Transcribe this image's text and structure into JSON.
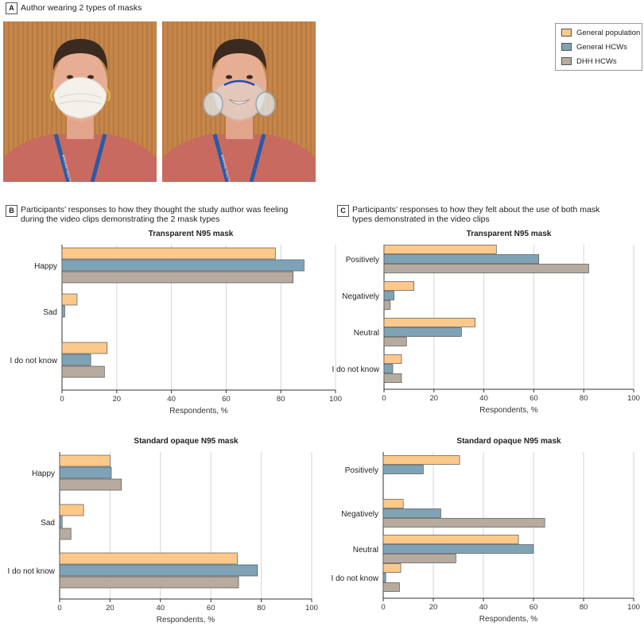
{
  "panel_a": {
    "letter": "A",
    "title": "Author wearing 2 types of masks"
  },
  "panel_b": {
    "letter": "B",
    "title_lines": [
      "Participants’ responses to how they thought the study author was feeling",
      "during the video clips demonstrating the 2 mask types"
    ]
  },
  "panel_c": {
    "letter": "C",
    "title_lines": [
      "Participants’ responses to how they felt about the use of both mask",
      "types demonstrated in the video clips"
    ]
  },
  "photo_left": {
    "lanyard_text": "BRIGHAM HEALTH"
  },
  "photo_right": {
    "lanyard_text": "BRIGHAM HEALTH"
  },
  "legend": [
    {
      "label": "General population",
      "color": "#fcc98b"
    },
    {
      "label": "General HCWs",
      "color": "#7fa3b6"
    },
    {
      "label": "DHH HCWs",
      "color": "#b6ab9e"
    }
  ],
  "chart_data": [
    {
      "id": "B-top",
      "type": "bar",
      "orientation": "horizontal",
      "title": "Transparent N95 mask",
      "xlabel": "Respondents, %",
      "xlim": [
        0,
        100
      ],
      "xticks": [
        "0",
        "20",
        "40",
        "60",
        "80",
        "100"
      ],
      "categories": [
        "Happy",
        "Sad",
        "I do not know"
      ],
      "series": [
        {
          "name": "General population",
          "values": [
            78,
            5.5,
            16.5
          ]
        },
        {
          "name": "General HCWs",
          "values": [
            88.5,
            1,
            10.5
          ]
        },
        {
          "name": "DHH HCWs",
          "values": [
            84.5,
            0,
            15.5
          ]
        }
      ]
    },
    {
      "id": "B-bottom",
      "type": "bar",
      "orientation": "horizontal",
      "title": "Standard opaque N95 mask",
      "xlabel": "Respondents, %",
      "xlim": [
        0,
        100
      ],
      "xticks": [
        "0",
        "20",
        "40",
        "60",
        "80",
        "100"
      ],
      "categories": [
        "Happy",
        "Sad",
        "I do not know"
      ],
      "series": [
        {
          "name": "General population",
          "values": [
            20,
            9.5,
            70.5
          ]
        },
        {
          "name": "General HCWs",
          "values": [
            20.5,
            1,
            78.5
          ]
        },
        {
          "name": "DHH HCWs",
          "values": [
            24.5,
            4.5,
            71
          ]
        }
      ]
    },
    {
      "id": "C-top",
      "type": "bar",
      "orientation": "horizontal",
      "title": "Transparent N95 mask",
      "xlabel": "Respondents, %",
      "xlim": [
        0,
        100
      ],
      "xticks": [
        "0",
        "20",
        "40",
        "60",
        "80",
        "100"
      ],
      "categories": [
        "Positively",
        "Negatively",
        "Neutral",
        "I do not know"
      ],
      "series": [
        {
          "name": "General population",
          "values": [
            45,
            12,
            36.5,
            7
          ]
        },
        {
          "name": "General HCWs",
          "values": [
            62,
            4,
            31,
            3.5
          ]
        },
        {
          "name": "DHH HCWs",
          "values": [
            82,
            2.5,
            9,
            7
          ]
        }
      ]
    },
    {
      "id": "C-bottom",
      "type": "bar",
      "orientation": "horizontal",
      "title": "Standard opaque N95 mask",
      "xlabel": "Respondents, %",
      "xlim": [
        0,
        100
      ],
      "xticks": [
        "0",
        "20",
        "40",
        "60",
        "80",
        "100"
      ],
      "categories": [
        "Positively",
        "Negatively",
        "Neutral",
        "I do not know"
      ],
      "series": [
        {
          "name": "General population",
          "values": [
            30.5,
            8,
            54,
            7
          ]
        },
        {
          "name": "General HCWs",
          "values": [
            16,
            23,
            60,
            1
          ]
        },
        {
          "name": "DHH HCWs",
          "values": [
            0,
            64.5,
            29,
            6.5
          ]
        }
      ]
    }
  ]
}
